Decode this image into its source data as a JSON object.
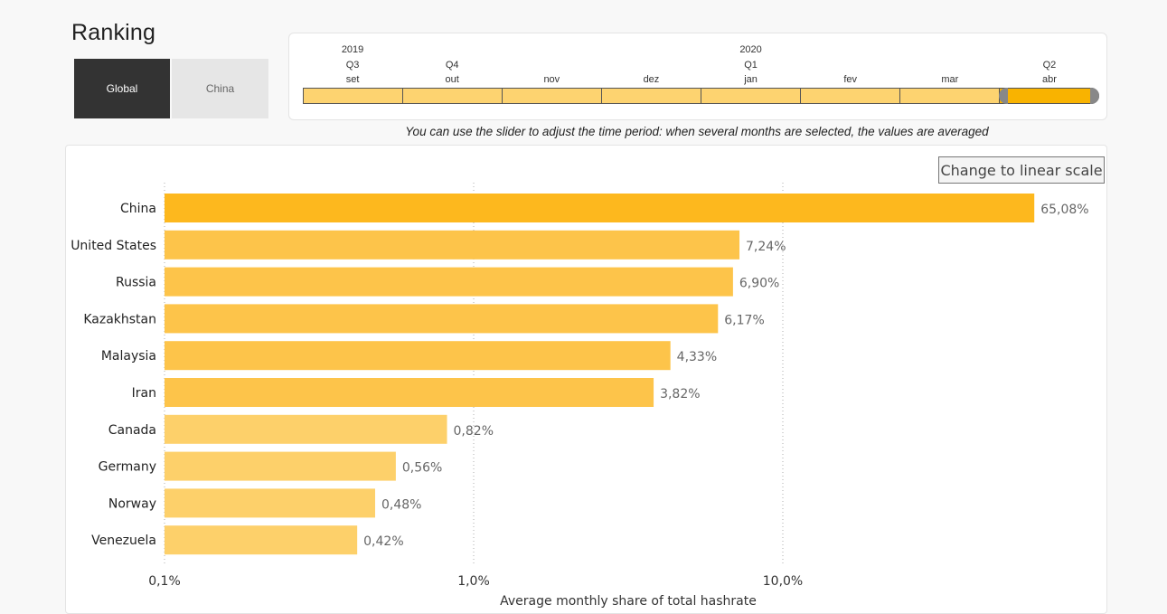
{
  "header": {
    "title": "Ranking"
  },
  "region_toggle": {
    "global_label": "Global",
    "china_label": "China",
    "selected": "Global"
  },
  "time_slider": {
    "years": [
      {
        "label": "2019",
        "col": 0
      },
      {
        "label": "2020",
        "col": 4
      }
    ],
    "quarters": [
      {
        "label": "Q3",
        "col": 0
      },
      {
        "label": "Q4",
        "col": 1
      },
      {
        "label": "Q1",
        "col": 4
      },
      {
        "label": "Q2",
        "col": 7
      }
    ],
    "months": [
      "set",
      "out",
      "nov",
      "dez",
      "jan",
      "fev",
      "mar",
      "abr"
    ],
    "selected_month": "abr"
  },
  "hint_text": "You can use the slider to adjust the time period: when several months are selected, the values are averaged",
  "scale_button_label": "Change to linear scale",
  "chart_data": {
    "type": "bar",
    "orientation": "horizontal",
    "x_scale": "log",
    "xlim": [
      0.1,
      100
    ],
    "x_ticks": [
      0.1,
      1.0,
      10.0
    ],
    "x_tick_labels": [
      "0,1%",
      "1,0%",
      "10,0%"
    ],
    "xlabel": "Average monthly share of total hashrate",
    "grid": "vertical dotted",
    "categories": [
      "China",
      "United States",
      "Russia",
      "Kazakhstan",
      "Malaysia",
      "Iran",
      "Canada",
      "Germany",
      "Norway",
      "Venezuela"
    ],
    "values": [
      65.08,
      7.24,
      6.9,
      6.17,
      4.33,
      3.82,
      0.82,
      0.56,
      0.48,
      0.42
    ],
    "value_labels": [
      "65,08%",
      "7,24%",
      "6,90%",
      "6,17%",
      "4,33%",
      "3,82%",
      "0,82%",
      "0,56%",
      "0,48%",
      "0,42%"
    ],
    "colors": [
      "#fdb81e",
      "#fdc44a",
      "#fdc44a",
      "#fdc44a",
      "#fdc44a",
      "#fdc44a",
      "#fdd06a",
      "#fdd06a",
      "#fdd06a",
      "#fdd06a"
    ]
  }
}
